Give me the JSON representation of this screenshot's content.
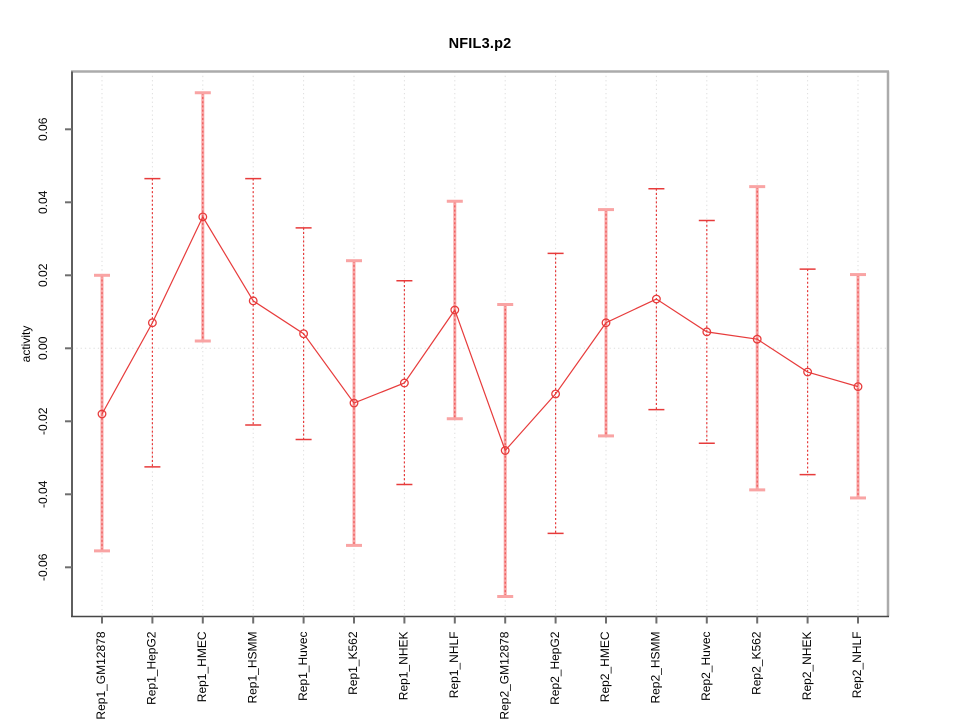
{
  "chart_data": {
    "type": "line",
    "title": "NFIL3.p2",
    "xlabel": "",
    "ylabel": "activity",
    "ylim": [
      -0.0736,
      0.076
    ],
    "yticks": [
      0.06,
      0.04,
      0.02,
      0,
      -0.02,
      -0.04,
      -0.06
    ],
    "ytick_format": "two-decimals",
    "grid": {
      "vertical": "dotted line at every category",
      "horizontal": "dotted line at zero only"
    },
    "legend": "none",
    "marker": "open-circle",
    "categories": [
      "Rep1_GM12878",
      "Rep1_HepG2",
      "Rep1_HMEC",
      "Rep1_HSMM",
      "Rep1_Huvec",
      "Rep1_K562",
      "Rep1_NHEK",
      "Rep1_NHLF",
      "Rep2_GM12878",
      "Rep2_HepG2",
      "Rep2_HMEC",
      "Rep2_HSMM",
      "Rep2_Huvec",
      "Rep2_K562",
      "Rep2_NHEK",
      "Rep2_NHLF"
    ],
    "series": [
      {
        "name": "activity",
        "values": [
          -0.018,
          0.007,
          0.036,
          0.013,
          0.004,
          -0.015,
          -0.0095,
          0.0105,
          -0.028,
          -0.0125,
          0.007,
          0.0135,
          0.0045,
          0.0025,
          -0.0065,
          -0.0105
        ],
        "upper": [
          0.02,
          0.0465,
          0.07,
          0.0465,
          0.033,
          0.024,
          0.0185,
          0.0403,
          0.012,
          0.026,
          0.038,
          0.0437,
          0.035,
          0.0443,
          0.0217,
          0.0202
        ],
        "lower": [
          -0.0555,
          -0.0325,
          0.002,
          -0.021,
          -0.025,
          -0.054,
          -0.0373,
          -0.0193,
          -0.068,
          -0.0507,
          -0.024,
          -0.0168,
          -0.026,
          -0.0388,
          -0.0346,
          -0.041
        ],
        "bar_styles": [
          "pale-solid",
          "red-dashed",
          "pale-solid",
          "red-dashed",
          "red-dashed",
          "pale-solid",
          "red-dashed",
          "pale-solid",
          "pale-solid",
          "red-dashed",
          "pale-solid",
          "red-dashed",
          "red-dashed",
          "pale-solid",
          "red-dashed",
          "pale-solid"
        ]
      }
    ],
    "colors": {
      "point": "#e73b3b",
      "series_line": "#e73b3b",
      "bar_dashed": "#e73b3b",
      "bar_pale": "#f9a4a4",
      "grid": "#dedede",
      "zero_line": "#dedede",
      "box_light": "#ababab",
      "box_left": "#5f5f5f",
      "box_bottom": "#474747",
      "tick": "#6e6e6e",
      "label_text": "#000000"
    }
  }
}
